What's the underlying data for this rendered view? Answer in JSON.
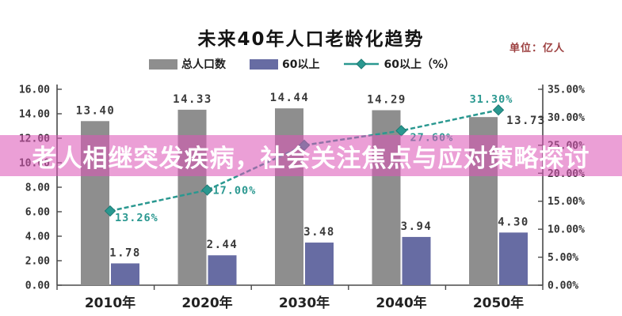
{
  "chart": {
    "title": "未来40年人口老龄化趋势",
    "unit_label": "单位：亿人",
    "unit_color": "#9c3f3f",
    "legend": [
      {
        "label": "总人口数"
      },
      {
        "label": "60以上"
      },
      {
        "label": "60以上（%）"
      }
    ]
  },
  "banner": {
    "text": "老人相继突发疾病，社会关注焦点与应对策略探讨",
    "bg": "rgba(219,86,183,0.57)",
    "text_color": "#ffffff"
  },
  "chart_data": {
    "type": "bar",
    "subtype": "grouped bars with right-axis line overlay",
    "title": "未来40年人口老龄化趋势",
    "unit": "亿人",
    "categories": [
      "2010年",
      "2020年",
      "2030年",
      "2040年",
      "2050年"
    ],
    "series": [
      {
        "name": "总人口数",
        "type": "bar",
        "axis": "left",
        "color": "#8e8e8e",
        "values": [
          13.4,
          14.33,
          14.44,
          14.29,
          13.73
        ],
        "labels": [
          "13.40",
          "14.33",
          "14.44",
          "14.29",
          "13.73"
        ]
      },
      {
        "name": "60以上",
        "type": "bar",
        "axis": "left",
        "color": "#676ca3",
        "values": [
          1.78,
          2.44,
          3.48,
          3.94,
          4.3
        ],
        "labels": [
          "1.78",
          "2.44",
          "3.48",
          "3.94",
          "4.30"
        ]
      },
      {
        "name": "60以上（%）",
        "type": "line",
        "axis": "right",
        "color": "#2a9890",
        "marker": "diamond",
        "line_style": "dashed",
        "values": [
          13.26,
          17.0,
          25.0,
          27.6,
          31.3
        ],
        "labels": [
          "13.26%",
          "17.00%",
          "",
          "27.60%",
          "31.30%"
        ]
      }
    ],
    "left_axis": {
      "min": 0,
      "max": 16,
      "step": 2,
      "tick_labels": [
        "0.00",
        "2.00",
        "4.00",
        "6.00",
        "8.00",
        "10.00",
        "12.00",
        "14.00",
        "16.00"
      ]
    },
    "right_axis": {
      "min": 0,
      "max": 35,
      "step": 5,
      "tick_labels": [
        "0.00%",
        "5.00%",
        "10.00%",
        "15.00%",
        "20.00%",
        "25.00%",
        "30.00%",
        "35.00%"
      ]
    },
    "grid": false,
    "legend_position": "top"
  }
}
